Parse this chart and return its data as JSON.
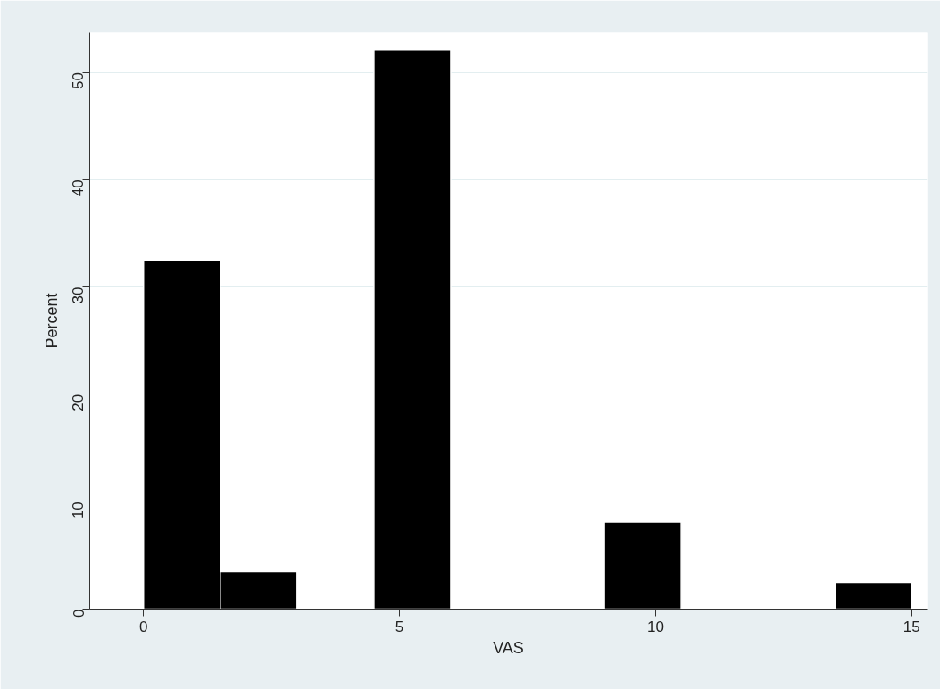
{
  "chart_data": {
    "type": "histogram",
    "xlabel": "VAS",
    "ylabel": "Percent",
    "bins": [
      0,
      1.5,
      3,
      4.5,
      6,
      7.5,
      9,
      10.5,
      12,
      13.5,
      15
    ],
    "values": [
      32.5,
      3.5,
      0,
      52.1,
      0,
      0,
      8.1,
      0,
      0,
      2.5
    ],
    "color": "#000000",
    "xlim": [
      -1.05,
      15.3
    ],
    "ylim": [
      0,
      53.7
    ],
    "xticks": [
      0,
      5,
      10,
      15
    ],
    "yticks": [
      0,
      10,
      20,
      30,
      40,
      50
    ],
    "grid": "y"
  }
}
